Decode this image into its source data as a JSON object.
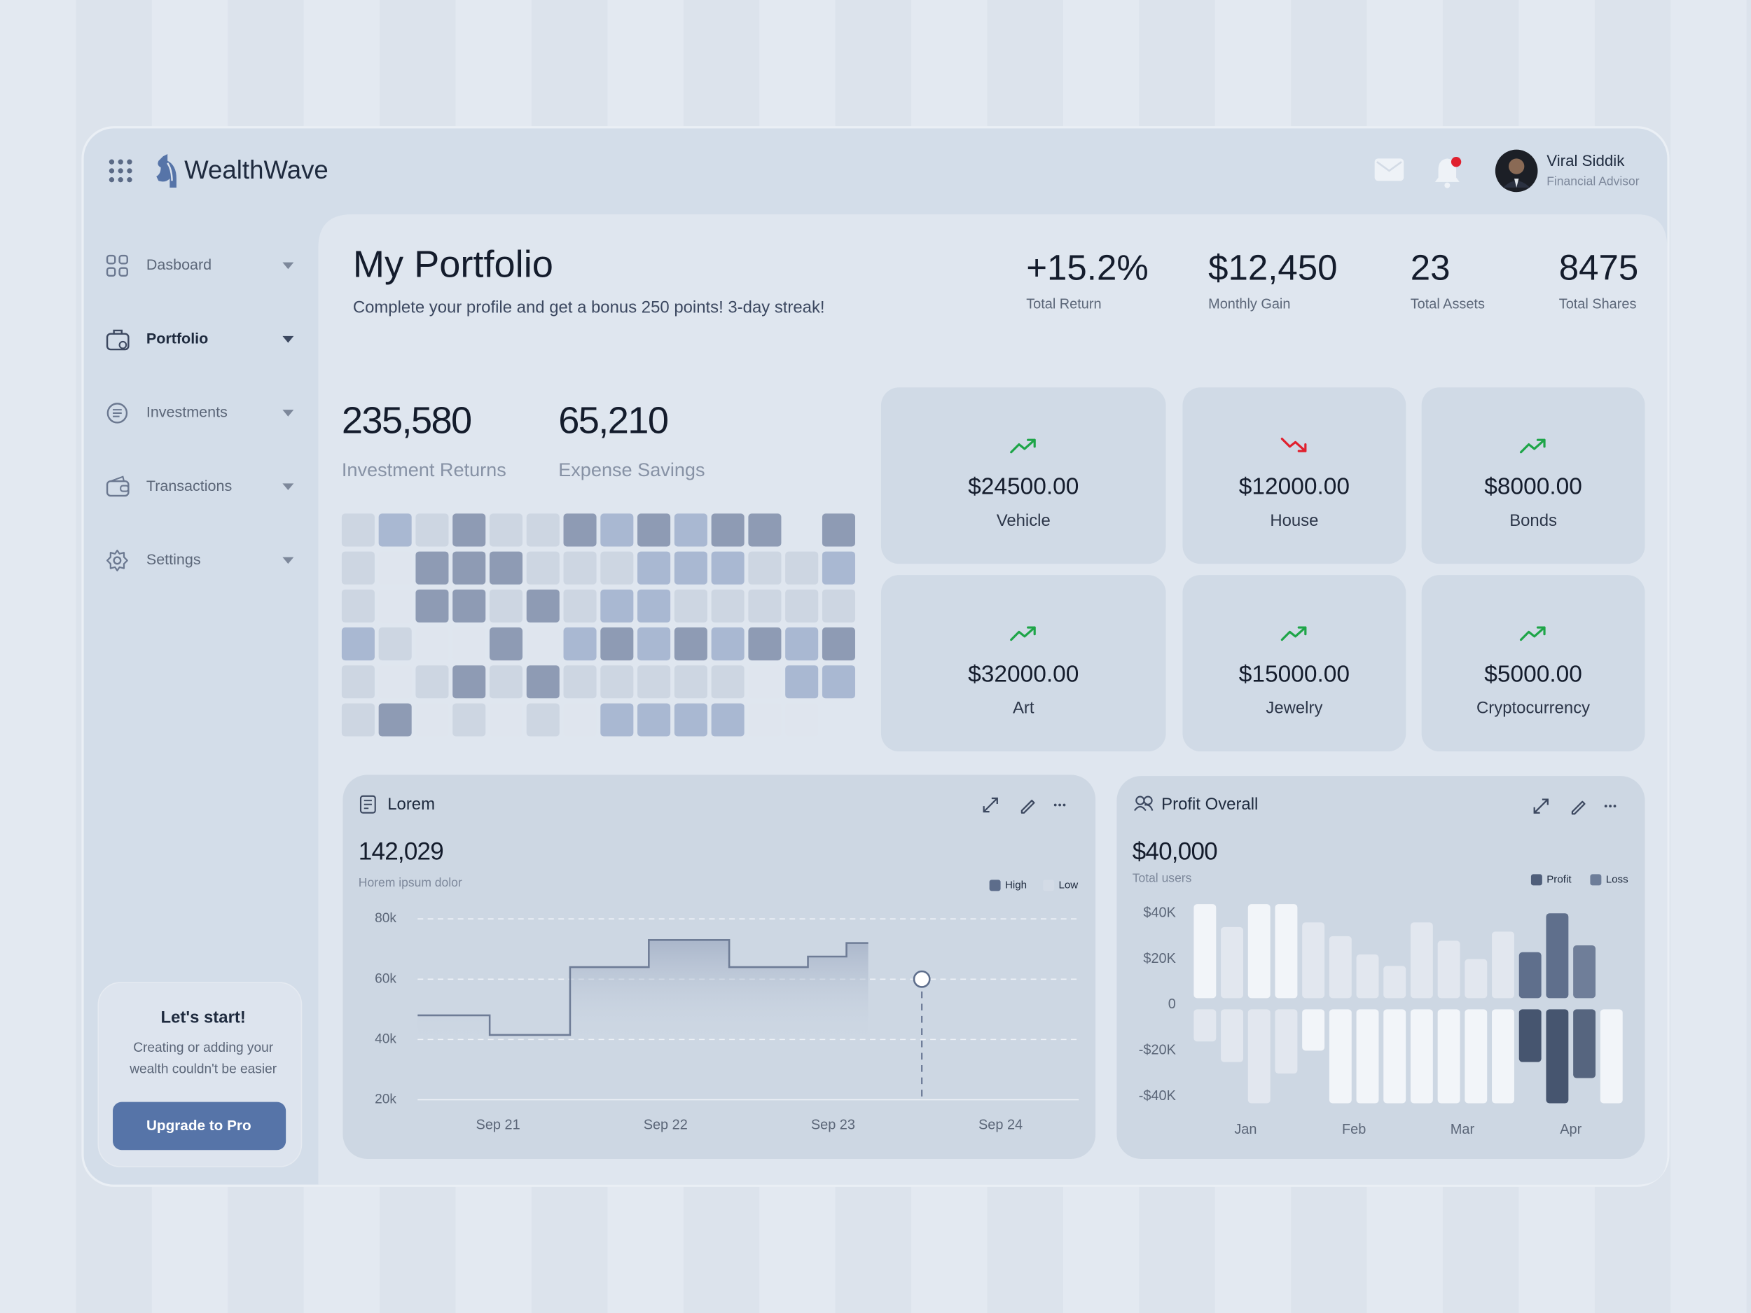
{
  "header": {
    "brand": "WealthWave",
    "user": {
      "name": "Viral Siddik",
      "role": "Financial Advisor"
    }
  },
  "sidebar": {
    "nav": [
      "Dasboard",
      "Portfolio",
      "Investments",
      "Transactions",
      "Settings"
    ],
    "promo": {
      "title": "Let's start!",
      "text": [
        "Creating or adding your",
        "wealth couldn't be easier"
      ],
      "button": "Upgrade to Pro"
    }
  },
  "portfolio": {
    "title": "My Portfolio",
    "subtitle": "Complete your profile and get a bonus 250 points! 3-day streak!",
    "stats": [
      {
        "value": "+15.2%",
        "label": "Total Return"
      },
      {
        "value": "$12,450",
        "label": "Monthly Gain"
      },
      {
        "value": "23",
        "label": "Total Assets"
      },
      {
        "value": "8475",
        "label": "Total Shares"
      }
    ]
  },
  "summary": [
    {
      "value": "235,580",
      "label": "Investment Returns"
    },
    {
      "value": "65,210",
      "label": "Expense Savings"
    }
  ],
  "heatmap": {
    "colors": [
      "#dfe5ee",
      "#cdd6e2",
      "#a9b8d2",
      "#8e9bb4"
    ],
    "levels": [
      [
        1,
        2,
        1,
        3,
        1,
        1,
        3,
        2,
        3,
        2,
        3,
        3,
        null,
        3
      ],
      [
        1,
        0,
        3,
        3,
        3,
        1,
        1,
        1,
        2,
        2,
        2,
        1,
        1,
        2
      ],
      [
        1,
        0,
        3,
        3,
        1,
        3,
        1,
        2,
        2,
        1,
        1,
        1,
        1,
        1
      ],
      [
        2,
        1,
        0,
        0,
        3,
        0,
        2,
        3,
        2,
        3,
        2,
        3,
        2,
        3
      ],
      [
        1,
        0,
        1,
        3,
        1,
        3,
        1,
        1,
        1,
        1,
        1,
        0,
        2,
        2
      ],
      [
        1,
        3,
        0,
        1,
        0,
        1,
        0,
        2,
        2,
        2,
        2,
        0,
        0,
        null
      ]
    ]
  },
  "trend_colors": {
    "up": "#1ea548",
    "down": "#e0202e"
  },
  "assets": [
    {
      "value": "$24500.00",
      "label": "Vehicle",
      "trend": "up"
    },
    {
      "value": "$12000.00",
      "label": "House",
      "trend": "down"
    },
    {
      "value": "$8000.00",
      "label": "Bonds",
      "trend": "up"
    },
    {
      "value": "$32000.00",
      "label": "Art",
      "trend": "up"
    },
    {
      "value": "$15000.00",
      "label": "Jewelry",
      "trend": "up"
    },
    {
      "value": "$5000.00",
      "label": "Cryptocurrency",
      "trend": "up"
    }
  ],
  "chart_data": [
    {
      "type": "line",
      "title": "Lorem",
      "value": "142,029",
      "subtitle": "Horem ipsum dolor",
      "legend": [
        {
          "name": "High",
          "color": "#5d6d8b"
        },
        {
          "name": "Low",
          "color": "#d3dbe6"
        }
      ],
      "xlim": [
        0.5,
        4.5
      ],
      "xticks": [
        {
          "value": 1,
          "label": "Sep 21"
        },
        {
          "value": 2,
          "label": "Sep 22"
        },
        {
          "value": 3,
          "label": "Sep 23"
        },
        {
          "value": 4,
          "label": "Sep 24"
        }
      ],
      "ylim": [
        20000,
        80000
      ],
      "yticks": [
        {
          "value": 20000,
          "label": "20k"
        },
        {
          "value": 40000,
          "label": "40k"
        },
        {
          "value": 60000,
          "label": "60k"
        },
        {
          "value": 80000,
          "label": "80k"
        }
      ],
      "grid": true,
      "series": [
        {
          "color": "#6e7c96",
          "x": [
            0.52,
            0.95,
            0.95,
            1.43,
            1.43,
            1.9,
            1.9,
            2.38,
            2.38,
            2.85,
            2.85,
            3.08,
            3.08,
            3.21
          ],
          "values": [
            48000,
            48000,
            41500,
            41500,
            64000,
            64000,
            73000,
            73000,
            64000,
            64000,
            67500,
            67500,
            72000,
            72000
          ]
        }
      ],
      "marker": {
        "x": 3.53,
        "value": 60000
      }
    },
    {
      "type": "bar",
      "title": "Profit Overall",
      "value": "$40,000",
      "subtitle": "Total users",
      "legend": [
        {
          "name": "Profit",
          "color": "#4f5e7a"
        },
        {
          "name": "Loss",
          "color": "#6d7d99"
        }
      ],
      "categories": [
        "Jan",
        null,
        null,
        null,
        "Feb",
        null,
        null,
        null,
        "Mar",
        null,
        null,
        null,
        "Apr",
        null,
        null,
        null
      ],
      "ylim": [
        -40000,
        40000
      ],
      "yticks": [
        {
          "value": 40000,
          "label": "$40K"
        },
        {
          "value": 20000,
          "label": "$20K"
        },
        0,
        {
          "value": -20000,
          "label": "-$20K"
        },
        {
          "value": -40000,
          "label": "-$40K"
        }
      ],
      "series": [
        {
          "values": [
            44000,
            34000,
            44000,
            44000,
            36000,
            30000,
            22000,
            17000,
            36000,
            28000,
            20000,
            32000,
            23000,
            40000,
            26000,
            null
          ],
          "colors": [
            "#f2f5f9",
            "#e2e7ef",
            "#f2f5f9",
            "#f2f5f9",
            "#e2e7ef",
            "#e2e7ef",
            "#e2e7ef",
            "#e2e7ef",
            "#e2e7ef",
            "#e2e7ef",
            "#e2e7ef",
            "#e2e7ef",
            "#5f6f8c",
            "#5f6f8c",
            "#6f7e99",
            "#e2e7ef"
          ]
        },
        {
          "values": [
            -16000,
            -25000,
            -43000,
            -30000,
            -20000,
            -43000,
            -43000,
            -43000,
            -43000,
            -43000,
            -43000,
            -43000,
            -25000,
            -43000,
            -32000,
            -43000
          ],
          "colors": [
            "#e2e7ef",
            "#e2e7ef",
            "#e2e7ef",
            "#e2e7ef",
            "#f2f5f9",
            "#f2f5f9",
            "#f2f5f9",
            "#f2f5f9",
            "#f2f5f9",
            "#f2f5f9",
            "#f2f5f9",
            "#f2f5f9",
            "#46556f",
            "#46556f",
            "#56657f",
            "#f2f5f9"
          ]
        }
      ]
    }
  ]
}
